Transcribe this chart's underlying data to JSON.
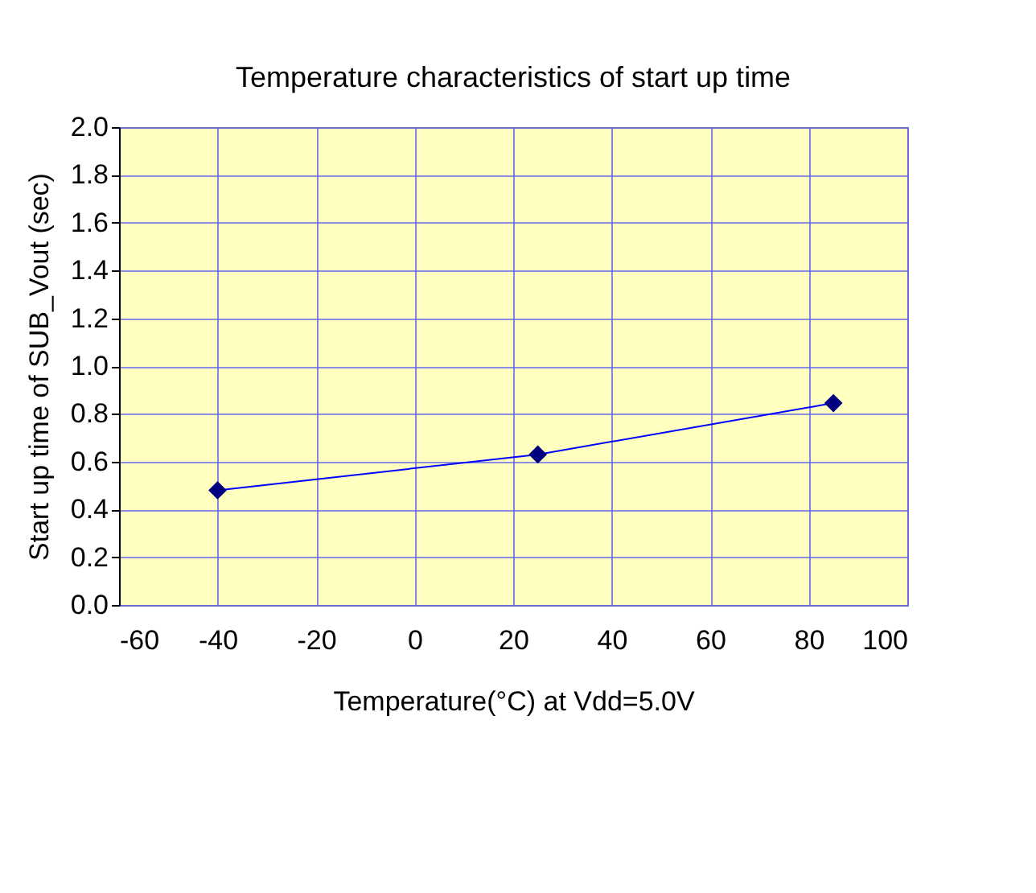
{
  "chart_data": {
    "type": "line",
    "title": "Temperature characteristics of  start up time",
    "xlabel": "Temperature(°C)  at  Vdd=5.0V",
    "ylabel": "Start up time of  SUB_Vout (sec)",
    "x": [
      -40,
      25,
      85
    ],
    "series": [
      {
        "color": "#0000ff",
        "values": [
          0.48,
          0.63,
          0.845
        ]
      }
    ],
    "marker": "diamond",
    "line_style": "solid",
    "grid": true,
    "xlim": [
      -60,
      100
    ],
    "xticks": [
      -60,
      -40,
      -20,
      0,
      20,
      40,
      60,
      80,
      100
    ],
    "ylim": [
      0,
      2
    ],
    "yticks": [
      {
        "value": 0,
        "label": "0.0"
      },
      0.2,
      0.4,
      0.6,
      0.8,
      {
        "value": 1,
        "label": "1.0"
      },
      1.2,
      1.4,
      1.6,
      1.8,
      {
        "value": 2,
        "label": "2.0"
      }
    ]
  }
}
